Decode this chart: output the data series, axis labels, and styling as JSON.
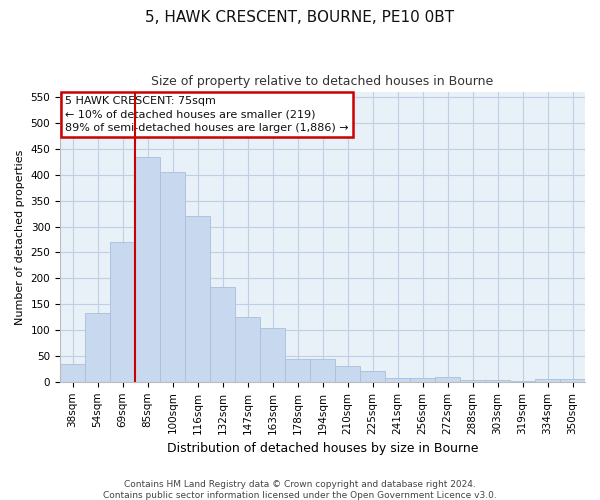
{
  "title": "5, HAWK CRESCENT, BOURNE, PE10 0BT",
  "subtitle": "Size of property relative to detached houses in Bourne",
  "xlabel": "Distribution of detached houses by size in Bourne",
  "ylabel": "Number of detached properties",
  "categories": [
    "38sqm",
    "54sqm",
    "69sqm",
    "85sqm",
    "100sqm",
    "116sqm",
    "132sqm",
    "147sqm",
    "163sqm",
    "178sqm",
    "194sqm",
    "210sqm",
    "225sqm",
    "241sqm",
    "256sqm",
    "272sqm",
    "288sqm",
    "303sqm",
    "319sqm",
    "334sqm",
    "350sqm"
  ],
  "values": [
    35,
    133,
    270,
    435,
    405,
    320,
    183,
    125,
    104,
    45,
    45,
    30,
    20,
    7,
    7,
    9,
    4,
    4,
    1,
    5,
    5
  ],
  "bar_color": "#c8d8ee",
  "bar_edge_color": "#a8c0dc",
  "grid_color": "#c0d0e4",
  "bg_color": "#e8f0f8",
  "redline_color": "#cc0000",
  "annotation_box_color": "#ffffff",
  "annotation_box_edge_color": "#cc0000",
  "annotation_title": "5 HAWK CRESCENT: 75sqm",
  "annotation_line1": "← 10% of detached houses are smaller (219)",
  "annotation_line2": "89% of semi-detached houses are larger (1,886) →",
  "ylim": [
    0,
    560
  ],
  "yticks": [
    0,
    50,
    100,
    150,
    200,
    250,
    300,
    350,
    400,
    450,
    500,
    550
  ],
  "footer1": "Contains HM Land Registry data © Crown copyright and database right 2024.",
  "footer2": "Contains public sector information licensed under the Open Government Licence v3.0.",
  "title_fontsize": 11,
  "subtitle_fontsize": 9,
  "ylabel_fontsize": 8,
  "xlabel_fontsize": 9,
  "tick_fontsize": 7.5,
  "footer_fontsize": 6.5
}
